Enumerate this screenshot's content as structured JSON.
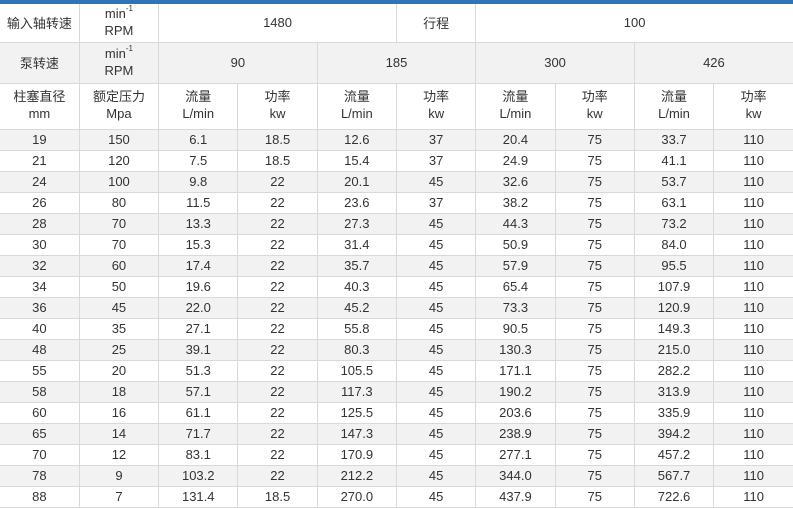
{
  "page": {
    "colors": {
      "accent": "#2e75b6",
      "stripe": "#f2f2f2",
      "border": "#d9d9d9",
      "text": "#333333"
    }
  },
  "table": {
    "row1": {
      "label": "输入轴转速",
      "unit": {
        "base": "min",
        "sup": "-1",
        "line2": "RPM"
      },
      "input_speed_value": "1480",
      "stroke_label": "行程",
      "stroke_value": "100"
    },
    "row2": {
      "label": "泵转速",
      "unit": {
        "base": "min",
        "sup": "-1",
        "line2": "RPM"
      },
      "speeds": [
        "90",
        "185",
        "300",
        "426"
      ]
    },
    "columns": [
      {
        "line1": "柱塞直径",
        "line2": "mm"
      },
      {
        "line1": "额定压力",
        "line2": "Mpa"
      },
      {
        "line1": "流量",
        "line2": "L/min"
      },
      {
        "line1": "功率",
        "line2": "kw"
      },
      {
        "line1": "流量",
        "line2": "L/min"
      },
      {
        "line1": "功率",
        "line2": "kw"
      },
      {
        "line1": "流量",
        "line2": "L/min"
      },
      {
        "line1": "功率",
        "line2": "kw"
      },
      {
        "line1": "流量",
        "line2": "L/min"
      },
      {
        "line1": "功率",
        "line2": "kw"
      }
    ],
    "rows": [
      [
        "19",
        "150",
        "6.1",
        "18.5",
        "12.6",
        "37",
        "20.4",
        "75",
        "33.7",
        "110"
      ],
      [
        "21",
        "120",
        "7.5",
        "18.5",
        "15.4",
        "37",
        "24.9",
        "75",
        "41.1",
        "110"
      ],
      [
        "24",
        "100",
        "9.8",
        "22",
        "20.1",
        "45",
        "32.6",
        "75",
        "53.7",
        "110"
      ],
      [
        "26",
        "80",
        "11.5",
        "22",
        "23.6",
        "37",
        "38.2",
        "75",
        "63.1",
        "110"
      ],
      [
        "28",
        "70",
        "13.3",
        "22",
        "27.3",
        "45",
        "44.3",
        "75",
        "73.2",
        "110"
      ],
      [
        "30",
        "70",
        "15.3",
        "22",
        "31.4",
        "45",
        "50.9",
        "75",
        "84.0",
        "110"
      ],
      [
        "32",
        "60",
        "17.4",
        "22",
        "35.7",
        "45",
        "57.9",
        "75",
        "95.5",
        "110"
      ],
      [
        "34",
        "50",
        "19.6",
        "22",
        "40.3",
        "45",
        "65.4",
        "75",
        "107.9",
        "110"
      ],
      [
        "36",
        "45",
        "22.0",
        "22",
        "45.2",
        "45",
        "73.3",
        "75",
        "120.9",
        "110"
      ],
      [
        "40",
        "35",
        "27.1",
        "22",
        "55.8",
        "45",
        "90.5",
        "75",
        "149.3",
        "110"
      ],
      [
        "48",
        "25",
        "39.1",
        "22",
        "80.3",
        "45",
        "130.3",
        "75",
        "215.0",
        "110"
      ],
      [
        "55",
        "20",
        "51.3",
        "22",
        "105.5",
        "45",
        "171.1",
        "75",
        "282.2",
        "110"
      ],
      [
        "58",
        "18",
        "57.1",
        "22",
        "117.3",
        "45",
        "190.2",
        "75",
        "313.9",
        "110"
      ],
      [
        "60",
        "16",
        "61.1",
        "22",
        "125.5",
        "45",
        "203.6",
        "75",
        "335.9",
        "110"
      ],
      [
        "65",
        "14",
        "71.7",
        "22",
        "147.3",
        "45",
        "238.9",
        "75",
        "394.2",
        "110"
      ],
      [
        "70",
        "12",
        "83.1",
        "22",
        "170.9",
        "45",
        "277.1",
        "75",
        "457.2",
        "110"
      ],
      [
        "78",
        "9",
        "103.2",
        "22",
        "212.2",
        "45",
        "344.0",
        "75",
        "567.7",
        "110"
      ],
      [
        "88",
        "7",
        "131.4",
        "18.5",
        "270.0",
        "45",
        "437.9",
        "75",
        "722.6",
        "110"
      ]
    ]
  }
}
